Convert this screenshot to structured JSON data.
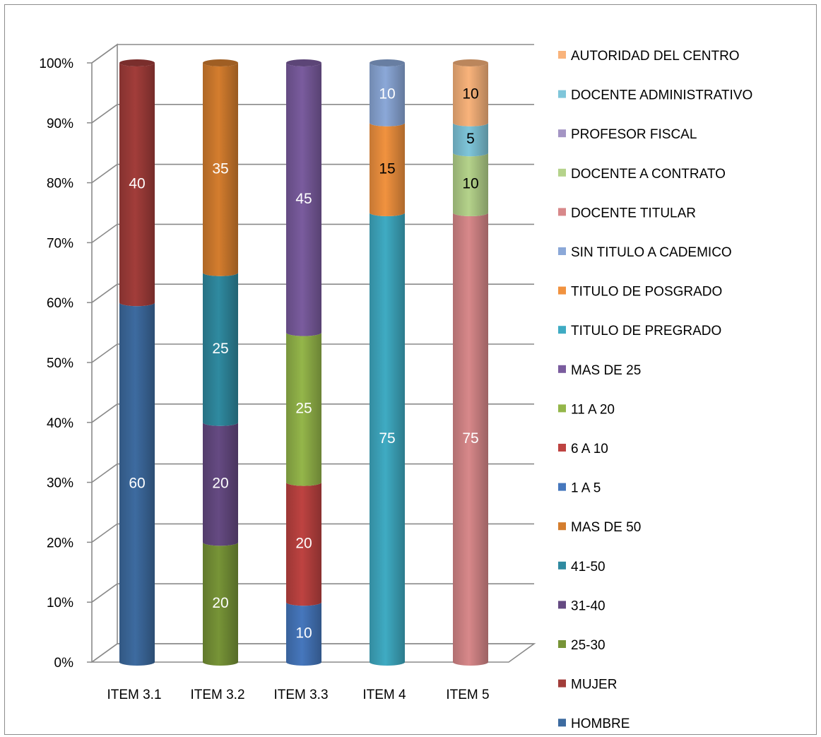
{
  "chart_data": {
    "type": "bar",
    "stacked": true,
    "percent_stacked": true,
    "three_d": true,
    "categories": [
      "ITEM 3.1",
      "ITEM 3.2",
      "ITEM 3.3",
      "ITEM 4",
      "ITEM 5"
    ],
    "y_ticks": [
      "0%",
      "10%",
      "20%",
      "30%",
      "40%",
      "50%",
      "60%",
      "70%",
      "80%",
      "90%",
      "100%"
    ],
    "ylim": [
      0,
      100
    ],
    "grid": true,
    "legend_position": "right",
    "series": [
      {
        "name": "HOMBRE",
        "color": "#3d6ba0",
        "values": [
          60,
          0,
          0,
          0,
          0
        ]
      },
      {
        "name": "MUJER",
        "color": "#a23d3a",
        "values": [
          40,
          0,
          0,
          0,
          0
        ]
      },
      {
        "name": "25-30",
        "color": "#779437",
        "values": [
          0,
          20,
          0,
          0,
          0
        ]
      },
      {
        "name": "31-40",
        "color": "#654a82",
        "values": [
          0,
          20,
          0,
          0,
          0
        ]
      },
      {
        "name": "41-50",
        "color": "#2f8aa0",
        "values": [
          0,
          25,
          0,
          0,
          0
        ]
      },
      {
        "name": "MAS DE 50",
        "color": "#d47d2e",
        "values": [
          0,
          35,
          0,
          0,
          0
        ]
      },
      {
        "name": "1 A 5",
        "color": "#4677bd",
        "values": [
          0,
          0,
          10,
          0,
          0
        ]
      },
      {
        "name": "6 A 10",
        "color": "#be4341",
        "values": [
          0,
          0,
          20,
          0,
          0
        ]
      },
      {
        "name": "11 A 20",
        "color": "#94b64a",
        "values": [
          0,
          0,
          25,
          0,
          0
        ]
      },
      {
        "name": "MAS  DE 25",
        "color": "#7a5c9e",
        "values": [
          0,
          0,
          45,
          0,
          0
        ]
      },
      {
        "name": "TITULO DE PREGRADO",
        "color": "#3fabc3",
        "values": [
          0,
          0,
          0,
          75,
          0
        ]
      },
      {
        "name": "TITULO DE POSGRADO",
        "color": "#f1923f",
        "values": [
          0,
          0,
          0,
          15,
          0
        ]
      },
      {
        "name": "SIN TITULO A CADEMICO",
        "color": "#8ba8d8",
        "values": [
          0,
          0,
          0,
          10,
          0
        ]
      },
      {
        "name": "DOCENTE TITULAR",
        "color": "#d8888a",
        "values": [
          0,
          0,
          0,
          0,
          75
        ]
      },
      {
        "name": "DOCENTE A CONTRATO",
        "color": "#b5d38b",
        "values": [
          0,
          0,
          0,
          0,
          10
        ]
      },
      {
        "name": "PROFESOR FISCAL",
        "color": "#a495c4",
        "values": [
          0,
          0,
          0,
          0,
          0
        ]
      },
      {
        "name": "DOCENTE ADMINISTRATIVO",
        "color": "#7fc6da",
        "values": [
          0,
          0,
          0,
          0,
          5
        ]
      },
      {
        "name": "AUTORIDAD DEL CENTRO",
        "color": "#f9b37b",
        "values": [
          0,
          0,
          0,
          0,
          10
        ]
      }
    ],
    "data_labels": [
      {
        "category": "ITEM 3.1",
        "series": "HOMBRE",
        "text": "60"
      },
      {
        "category": "ITEM 3.1",
        "series": "MUJER",
        "text": "40"
      },
      {
        "category": "ITEM 3.2",
        "series": "25-30",
        "text": "20"
      },
      {
        "category": "ITEM 3.2",
        "series": "31-40",
        "text": "20"
      },
      {
        "category": "ITEM 3.2",
        "series": "41-50",
        "text": "25"
      },
      {
        "category": "ITEM 3.2",
        "series": "MAS DE 50",
        "text": "35"
      },
      {
        "category": "ITEM 3.3",
        "series": "1 A 5",
        "text": "10"
      },
      {
        "category": "ITEM 3.3",
        "series": "6 A 10",
        "text": "20"
      },
      {
        "category": "ITEM 3.3",
        "series": "11 A 20",
        "text": "25"
      },
      {
        "category": "ITEM 3.3",
        "series": "MAS  DE 25",
        "text": "45"
      },
      {
        "category": "ITEM 4",
        "series": "TITULO DE PREGRADO",
        "text": "75"
      },
      {
        "category": "ITEM 4",
        "series": "TITULO DE POSGRADO",
        "text": "15"
      },
      {
        "category": "ITEM 4",
        "series": "SIN TITULO A CADEMICO",
        "text": "10"
      },
      {
        "category": "ITEM 5",
        "series": "DOCENTE TITULAR",
        "text": "75"
      },
      {
        "category": "ITEM 5",
        "series": "DOCENTE A CONTRATO",
        "text": "10"
      },
      {
        "category": "ITEM 5",
        "series": "DOCENTE ADMINISTRATIVO",
        "text": "5"
      },
      {
        "category": "ITEM 5",
        "series": "AUTORIDAD DEL CENTRO",
        "text": "10"
      }
    ]
  }
}
